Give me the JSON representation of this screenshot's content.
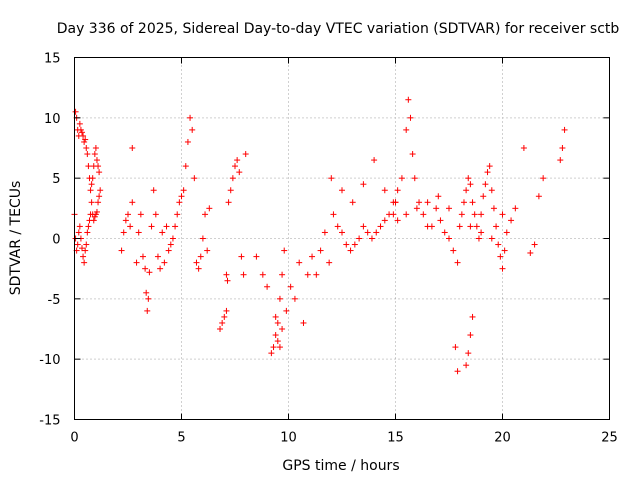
{
  "chart_data": {
    "type": "scatter",
    "title": "Day 336 of 2025, Sidereal Day-to-day VTEC variation (SDTVAR) for receiver sctb",
    "xlabel": "GPS time / hours",
    "ylabel": "SDTVAR / TECUs",
    "xlim": [
      0,
      25
    ],
    "ylim": [
      -15,
      15
    ],
    "xticks": [
      0,
      5,
      10,
      15,
      20,
      25
    ],
    "yticks": [
      -15,
      -10,
      -5,
      0,
      5,
      10,
      15
    ],
    "grid": true,
    "marker": "+",
    "colors": {
      "series": "#ff0000",
      "frame": "#000000",
      "grid": "#a0a0a0"
    },
    "series": [
      {
        "name": "SDTVAR",
        "x": [
          0.0,
          0.05,
          0.1,
          0.15,
          0.2,
          0.25,
          0.3,
          0.35,
          0.4,
          0.45,
          0.5,
          0.55,
          0.6,
          0.65,
          0.7,
          0.75,
          0.8,
          0.85,
          0.9,
          0.95,
          1.0,
          1.05,
          1.1,
          1.15,
          1.2,
          0.05,
          0.1,
          0.15,
          0.2,
          0.25,
          0.3,
          0.35,
          0.4,
          0.45,
          0.5,
          0.55,
          0.6,
          0.65,
          0.7,
          0.75,
          0.8,
          0.85,
          0.9,
          0.95,
          1.0,
          1.05,
          1.1,
          1.15,
          2.2,
          2.3,
          2.4,
          2.5,
          2.6,
          2.7,
          2.9,
          3.0,
          3.1,
          3.2,
          3.3,
          3.35,
          3.4,
          3.45,
          3.5,
          3.6,
          3.7,
          3.8,
          3.9,
          4.0,
          4.1,
          4.2,
          4.3,
          4.4,
          4.5,
          4.6,
          4.7,
          4.8,
          4.9,
          5.0,
          5.1,
          5.2,
          5.3,
          5.4,
          5.5,
          5.6,
          5.7,
          5.8,
          5.9,
          6.0,
          6.1,
          6.2,
          6.3,
          6.8,
          6.9,
          7.0,
          7.1,
          7.2,
          7.3,
          7.4,
          7.5,
          7.6,
          7.7,
          7.8,
          7.9,
          8.0,
          8.5,
          8.8,
          9.0,
          9.2,
          9.3,
          9.4,
          9.5,
          9.6,
          9.7,
          9.8,
          9.9,
          10.1,
          10.3,
          10.5,
          10.7,
          10.9,
          11.1,
          11.3,
          11.5,
          11.7,
          11.9,
          12.1,
          12.3,
          12.5,
          12.7,
          12.9,
          13.1,
          13.3,
          13.5,
          13.7,
          13.9,
          14.1,
          14.3,
          14.5,
          14.7,
          14.9,
          15.1,
          15.3,
          15.5,
          15.6,
          15.7,
          15.8,
          15.9,
          16.1,
          16.3,
          16.5,
          16.7,
          16.9,
          17.1,
          17.3,
          17.5,
          17.7,
          17.9,
          18.0,
          18.1,
          18.2,
          18.3,
          18.4,
          18.5,
          18.6,
          18.7,
          18.8,
          18.9,
          19.0,
          19.1,
          19.2,
          19.3,
          19.4,
          19.5,
          19.6,
          19.7,
          19.8,
          19.9,
          20.0,
          20.1,
          20.2,
          20.4,
          20.6,
          21.0,
          21.3,
          21.5,
          21.7,
          21.9,
          22.7,
          22.8,
          22.9,
          12.0,
          12.5,
          13.0,
          13.5,
          14.0,
          14.5,
          15.0,
          15.5,
          16.0,
          16.5,
          17.0,
          17.5,
          18.5,
          19.0,
          19.5,
          20.0,
          9.5,
          9.6,
          9.7,
          9.4,
          18.3,
          18.4,
          18.5,
          18.6,
          17.8,
          17.9,
          14.9,
          15.0,
          15.1,
          2.7,
          7.1,
          7.15
        ],
        "y": [
          2.0,
          10.5,
          10.0,
          9.0,
          8.5,
          9.5,
          9.0,
          8.8,
          8.5,
          8.0,
          8.2,
          7.5,
          7.0,
          6.0,
          5.0,
          4.0,
          3.0,
          2.0,
          1.5,
          1.8,
          2.0,
          2.2,
          3.0,
          3.5,
          4.0,
          0.0,
          -1.0,
          -0.5,
          0.5,
          1.0,
          0.0,
          -0.8,
          -1.5,
          -2.0,
          -1.0,
          -0.5,
          0.5,
          1.0,
          1.5,
          2.0,
          4.5,
          5.0,
          6.0,
          7.0,
          7.5,
          6.5,
          6.0,
          5.5,
          -1.0,
          0.5,
          1.5,
          2.0,
          1.0,
          3.0,
          -2.0,
          0.5,
          2.0,
          -1.5,
          -2.5,
          -4.5,
          -6.0,
          -5.0,
          -2.8,
          1.0,
          4.0,
          2.0,
          -1.5,
          -2.5,
          0.5,
          -2.0,
          1.0,
          -1.0,
          -0.5,
          0.0,
          1.0,
          2.0,
          3.0,
          3.5,
          4.0,
          6.0,
          8.0,
          10.0,
          9.0,
          5.0,
          -2.0,
          -2.5,
          -1.5,
          0.0,
          2.0,
          -1.0,
          2.5,
          -7.5,
          -7.0,
          -6.5,
          -6.0,
          3.0,
          4.0,
          5.0,
          6.0,
          6.5,
          5.5,
          -1.5,
          -3.0,
          7.0,
          -1.5,
          -3.0,
          -4.0,
          -9.5,
          -9.0,
          -8.0,
          -7.0,
          -5.0,
          -3.0,
          -1.0,
          -6.0,
          -4.0,
          -5.0,
          -2.0,
          -7.0,
          -3.0,
          -1.5,
          -3.0,
          -1.0,
          0.5,
          -2.0,
          2.0,
          1.0,
          0.5,
          -0.5,
          -1.0,
          -0.5,
          0.0,
          1.0,
          0.5,
          0.0,
          0.5,
          1.0,
          1.5,
          2.0,
          3.0,
          4.0,
          5.0,
          9.0,
          11.5,
          10.0,
          7.0,
          5.0,
          3.0,
          2.0,
          1.0,
          1.0,
          2.5,
          1.5,
          0.5,
          0.0,
          -1.0,
          -2.0,
          1.0,
          2.0,
          3.0,
          4.0,
          5.0,
          4.5,
          3.0,
          2.0,
          1.0,
          0.0,
          2.0,
          3.5,
          4.5,
          5.5,
          6.0,
          4.0,
          2.5,
          1.0,
          -0.5,
          -1.5,
          -2.5,
          -1.0,
          0.5,
          1.5,
          2.5,
          7.5,
          -1.2,
          -0.5,
          3.5,
          5.0,
          6.5,
          7.5,
          9.0,
          5.0,
          4.0,
          3.0,
          4.5,
          6.5,
          4.0,
          3.0,
          2.0,
          2.5,
          3.0,
          3.5,
          2.5,
          1.0,
          0.5,
          0.0,
          2.0,
          -8.5,
          -9.0,
          -7.5,
          -6.5,
          -10.5,
          -9.5,
          -8.0,
          -6.5,
          -9.0,
          -11.0,
          2.0,
          3.0,
          1.5,
          7.5,
          -3.0,
          -3.5
        ]
      }
    ]
  }
}
